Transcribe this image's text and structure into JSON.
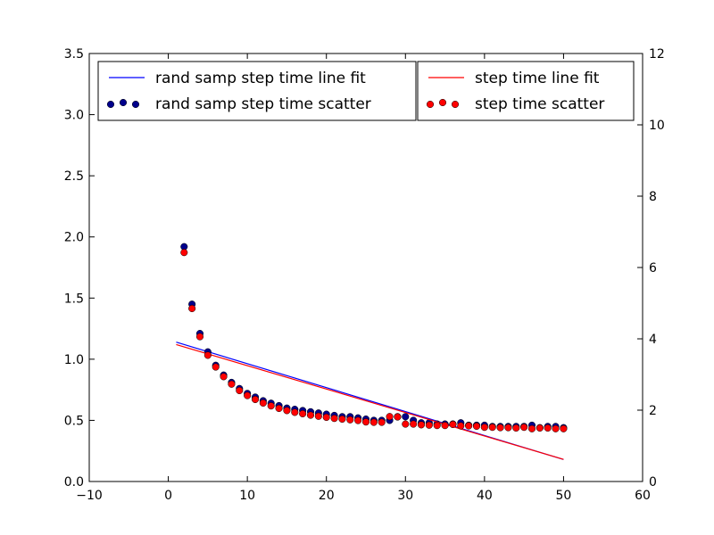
{
  "chart_data": {
    "type": "scatter",
    "x": [
      1,
      2,
      3,
      4,
      5,
      6,
      7,
      8,
      9,
      10,
      11,
      12,
      13,
      14,
      15,
      16,
      17,
      18,
      19,
      20,
      21,
      22,
      23,
      24,
      25,
      26,
      27,
      28,
      29,
      30,
      31,
      32,
      33,
      34,
      35,
      36,
      37,
      38,
      39,
      40,
      41,
      42,
      43,
      44,
      45,
      46,
      47,
      48,
      49,
      50
    ],
    "xlim": [
      -10,
      60
    ],
    "xticks": [
      -10,
      0,
      10,
      20,
      30,
      40,
      50,
      60
    ],
    "xtick_labels": [
      "−10",
      "0",
      "10",
      "20",
      "30",
      "40",
      "50",
      "60"
    ],
    "left_axis": {
      "ylim": [
        0,
        3.5
      ],
      "ticks": [
        0,
        0.5,
        1.0,
        1.5,
        2.0,
        2.5,
        3.0,
        3.5
      ],
      "tick_labels": [
        "0.0",
        "0.5",
        "1.0",
        "1.5",
        "2.0",
        "2.5",
        "3.0",
        "3.5"
      ]
    },
    "right_axis": {
      "ylim": [
        0,
        12
      ],
      "ticks": [
        0,
        2,
        4,
        6,
        8,
        10,
        12
      ],
      "tick_labels": [
        "0",
        "2",
        "4",
        "6",
        "8",
        "10",
        "12"
      ]
    },
    "series": [
      {
        "name": "rand samp step time line fit",
        "kind": "line",
        "axis": "left",
        "color": "#0000ff",
        "x": [
          1,
          50
        ],
        "y": [
          1.14,
          0.18
        ]
      },
      {
        "name": "rand samp step time scatter",
        "kind": "scatter",
        "axis": "left",
        "color": "#00008b",
        "x": [
          2,
          3,
          4,
          5,
          6,
          7,
          8,
          9,
          10,
          11,
          12,
          13,
          14,
          15,
          16,
          17,
          18,
          19,
          20,
          21,
          22,
          23,
          24,
          25,
          26,
          27,
          28,
          29,
          30,
          31,
          32,
          33,
          34,
          35,
          36,
          37,
          38,
          39,
          40,
          41,
          42,
          43,
          44,
          45,
          46,
          47,
          48,
          49,
          50
        ],
        "y": [
          1.92,
          1.45,
          1.21,
          1.06,
          0.95,
          0.87,
          0.81,
          0.76,
          0.72,
          0.69,
          0.66,
          0.64,
          0.62,
          0.6,
          0.59,
          0.58,
          0.57,
          0.56,
          0.55,
          0.54,
          0.53,
          0.53,
          0.52,
          0.51,
          0.5,
          0.5,
          0.5,
          0.53,
          0.53,
          0.5,
          0.48,
          0.48,
          0.47,
          0.47,
          0.47,
          0.48,
          0.46,
          0.46,
          0.46,
          0.45,
          0.45,
          0.45,
          0.45,
          0.45,
          0.46,
          0.44,
          0.45,
          0.45,
          0.44
        ]
      },
      {
        "name": "step time line fit",
        "kind": "line",
        "axis": "right",
        "color": "#ff0000",
        "x": [
          1,
          50
        ],
        "y": [
          3.84,
          0.62
        ]
      },
      {
        "name": "step time scatter",
        "kind": "scatter",
        "axis": "right",
        "color": "#ff0000",
        "x": [
          1,
          2,
          3,
          4,
          5,
          6,
          7,
          8,
          9,
          10,
          11,
          12,
          13,
          14,
          15,
          16,
          17,
          18,
          19,
          20,
          21,
          22,
          23,
          24,
          25,
          26,
          27,
          28,
          29,
          30,
          31,
          32,
          33,
          34,
          35,
          36,
          37,
          38,
          39,
          40,
          41,
          42,
          43,
          44,
          45,
          46,
          47,
          48,
          49,
          50
        ],
        "y": [
          10.84,
          6.42,
          4.85,
          4.06,
          3.54,
          3.21,
          2.94,
          2.73,
          2.55,
          2.41,
          2.3,
          2.2,
          2.12,
          2.05,
          1.99,
          1.94,
          1.9,
          1.86,
          1.83,
          1.8,
          1.77,
          1.75,
          1.73,
          1.71,
          1.67,
          1.66,
          1.66,
          1.82,
          1.81,
          1.61,
          1.61,
          1.59,
          1.58,
          1.57,
          1.57,
          1.6,
          1.56,
          1.56,
          1.55,
          1.52,
          1.52,
          1.51,
          1.51,
          1.5,
          1.52,
          1.48,
          1.5,
          1.5,
          1.48,
          1.48
        ]
      }
    ],
    "legends": [
      {
        "position": "upper-left",
        "entries": [
          0,
          1
        ]
      },
      {
        "position": "upper-right-of-first",
        "entries": [
          2,
          3
        ]
      }
    ]
  }
}
